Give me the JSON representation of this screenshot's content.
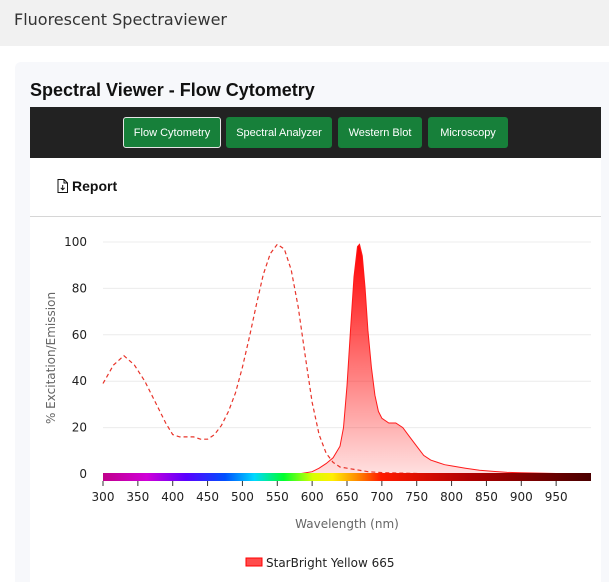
{
  "app": {
    "title": "Fluorescent Spectraviewer"
  },
  "panel": {
    "title": "Spectral Viewer - Flow Cytometry"
  },
  "toolbar": {
    "buttons": [
      {
        "label": "Flow Cytometry",
        "active": true
      },
      {
        "label": "Spectral Analyzer",
        "active": false
      },
      {
        "label": "Western Blot",
        "active": false
      },
      {
        "label": "Microscopy",
        "active": false
      }
    ]
  },
  "report": {
    "label": "Report",
    "icon": "document-icon"
  },
  "colors": {
    "button_green": "#17803a",
    "toolbar_bg": "#222222",
    "series": "#ff0000"
  },
  "chart_data": {
    "type": "area",
    "xlabel": "Wavelength (nm)",
    "ylabel": "% Excitation/Emission",
    "xlim": [
      300,
      1000
    ],
    "ylim": [
      0,
      100
    ],
    "x_ticks": [
      300,
      350,
      400,
      450,
      500,
      550,
      600,
      650,
      700,
      750,
      800,
      850,
      900,
      950
    ],
    "y_ticks": [
      0,
      20,
      40,
      60,
      80,
      100
    ],
    "grid": true,
    "legend_position": "bottom",
    "wavelength_color_bar": true,
    "series": [
      {
        "name": "StarBright Yellow 665",
        "role": "excitation",
        "style": "dashed line",
        "x": [
          300,
          315,
          330,
          345,
          360,
          375,
          390,
          400,
          410,
          420,
          430,
          440,
          450,
          460,
          470,
          480,
          490,
          500,
          510,
          520,
          530,
          540,
          550,
          560,
          570,
          580,
          590,
          600,
          610,
          620,
          630,
          640,
          650,
          660,
          670,
          680,
          700,
          750,
          800
        ],
        "values": [
          39,
          47,
          51,
          47,
          40,
          31,
          22,
          17,
          16,
          16,
          16,
          15,
          15,
          17,
          21,
          27,
          35,
          46,
          59,
          73,
          86,
          95,
          99,
          97,
          88,
          72,
          51,
          31,
          17,
          9,
          5,
          3,
          2.5,
          2,
          1.5,
          1,
          0.6,
          0.2,
          0
        ]
      },
      {
        "name": "StarBright Yellow 665",
        "role": "emission",
        "style": "filled area",
        "x": [
          580,
          600,
          610,
          620,
          630,
          640,
          645,
          650,
          655,
          660,
          665,
          668,
          672,
          676,
          680,
          685,
          690,
          695,
          700,
          710,
          720,
          730,
          740,
          750,
          760,
          770,
          780,
          790,
          800,
          820,
          840,
          860,
          880,
          900,
          950,
          1000
        ],
        "values": [
          0,
          1,
          2.5,
          4.5,
          7,
          12,
          20,
          38,
          62,
          85,
          98,
          99,
          94,
          80,
          62,
          46,
          34,
          27,
          24,
          22,
          22,
          20,
          16,
          12,
          8,
          6,
          5,
          4,
          3.5,
          2.5,
          1.6,
          1.1,
          0.7,
          0.5,
          0.2,
          0
        ]
      }
    ]
  }
}
